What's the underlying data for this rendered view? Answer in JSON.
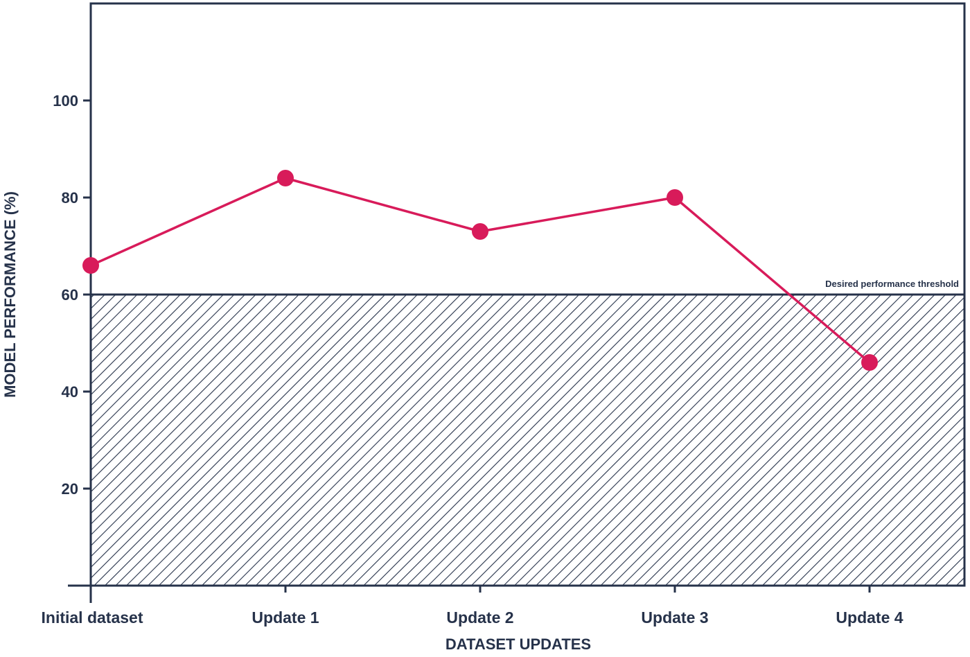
{
  "colors": {
    "axis": "#26324a",
    "series": "#d81b5a",
    "hatch": "#26324a"
  },
  "chart_data": {
    "type": "line",
    "categories": [
      "Initial dataset",
      "Update 1",
      "Update 2",
      "Update 3",
      "Update 4"
    ],
    "series": [
      {
        "values": [
          66,
          84,
          73,
          80,
          46
        ]
      }
    ],
    "title": "",
    "xlabel": "DATASET UPDATES",
    "ylabel": "MODEL PERFORMANCE (%)",
    "ylim": [
      0,
      120
    ],
    "yticks": [
      20,
      40,
      60,
      80,
      100
    ],
    "grid": false,
    "threshold": {
      "value": 60,
      "label": "Desired performance threshold"
    }
  }
}
